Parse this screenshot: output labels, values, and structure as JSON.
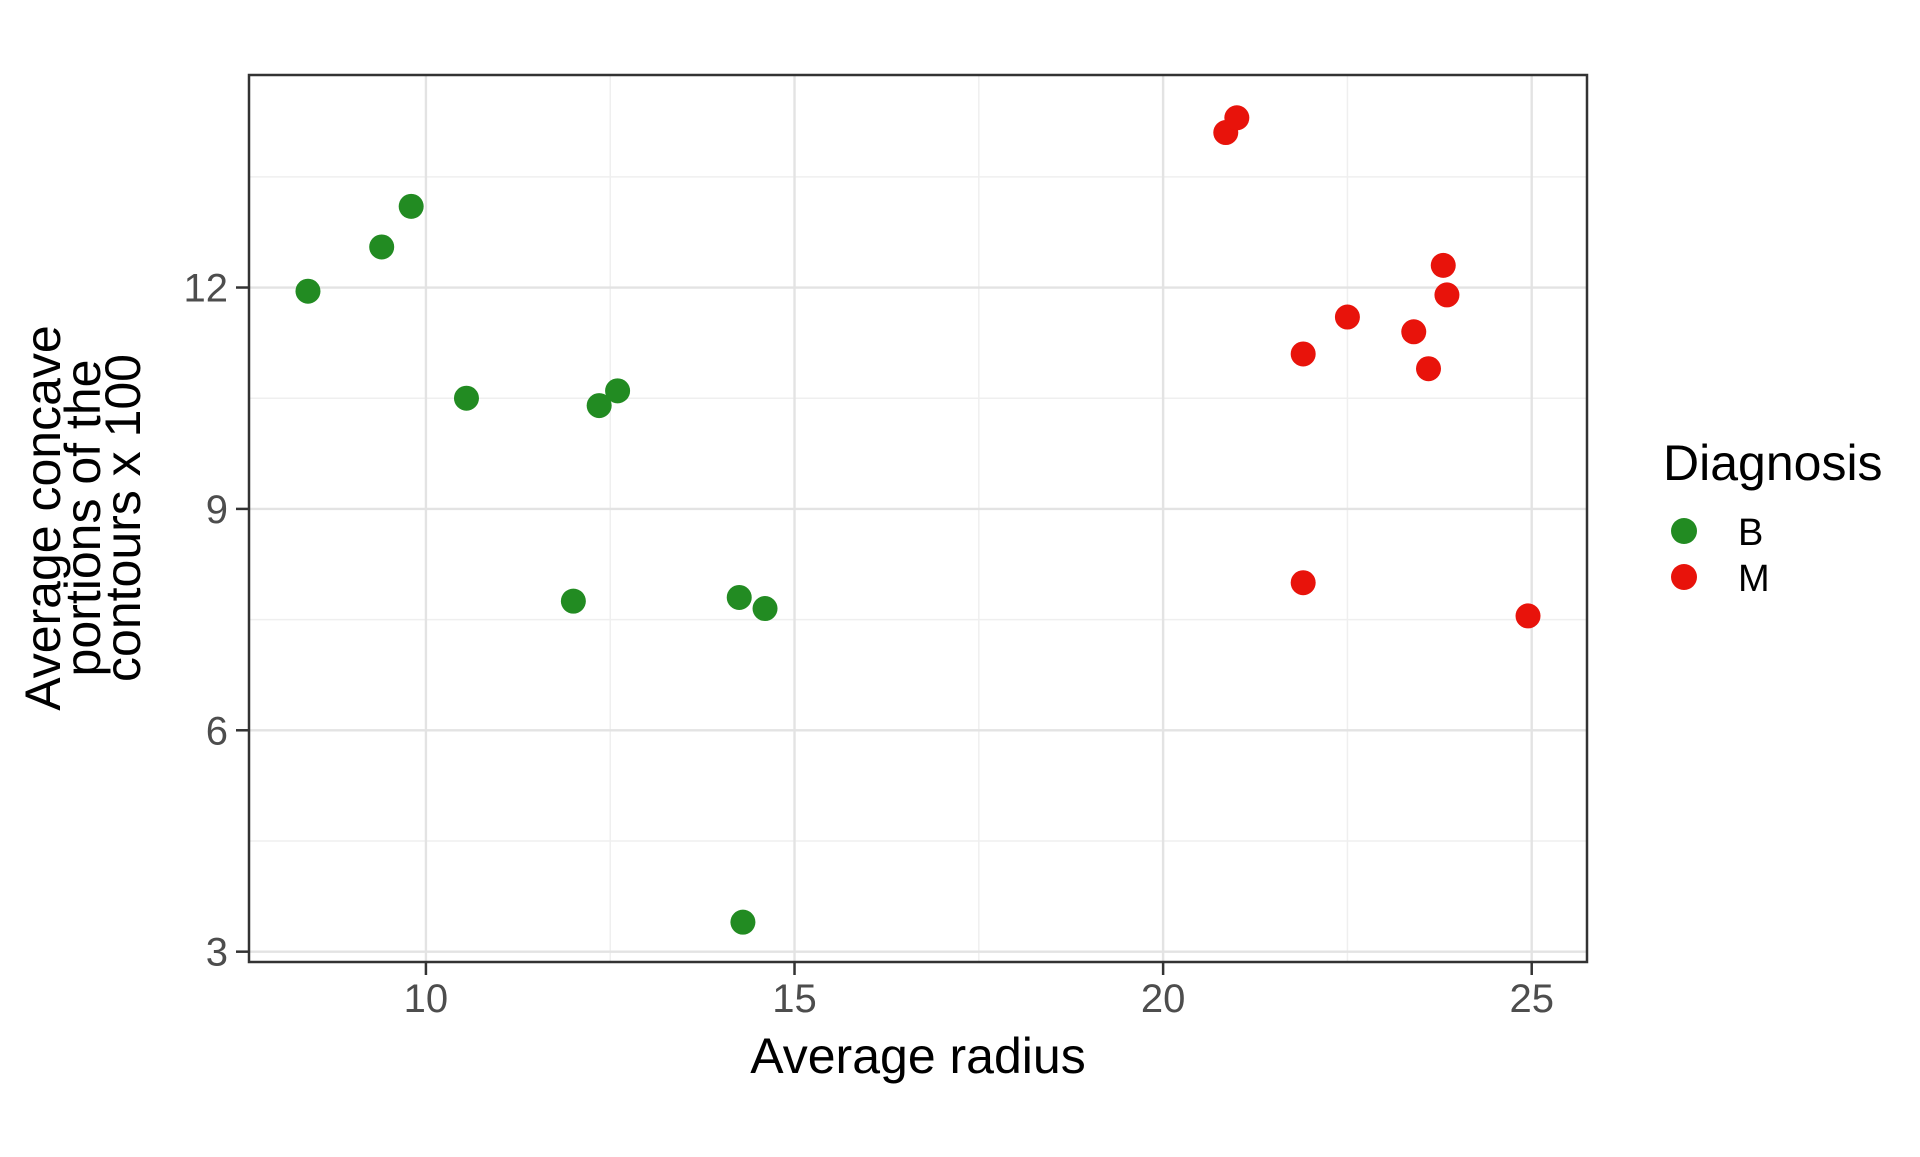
{
  "chart_data": {
    "type": "scatter",
    "xlabel": "Average radius",
    "ylabel_lines": [
      "Average concave",
      "portions of the",
      "contours x 100"
    ],
    "xlim": [
      7.6,
      25.75
    ],
    "ylim": [
      2.86,
      14.88
    ],
    "x_ticks": [
      10,
      15,
      20,
      25
    ],
    "y_ticks": [
      3,
      6,
      9,
      12
    ],
    "x_minor_gridlines": [
      12.5,
      17.5,
      22.5
    ],
    "y_minor_gridlines": [
      4.5,
      7.5,
      10.5,
      13.5
    ],
    "grid": true,
    "legend": {
      "title": "Diagnosis",
      "position": "right",
      "entries": [
        {
          "label": "B",
          "color": "#228B22"
        },
        {
          "label": "M",
          "color": "#E8130B"
        }
      ]
    },
    "series": [
      {
        "name": "B",
        "color": "#228B22",
        "points": [
          [
            8.4,
            11.95
          ],
          [
            9.4,
            12.55
          ],
          [
            9.8,
            13.1
          ],
          [
            10.55,
            10.5
          ],
          [
            12.35,
            10.4
          ],
          [
            12.6,
            10.6
          ],
          [
            12.0,
            7.75
          ],
          [
            14.25,
            7.8
          ],
          [
            14.6,
            7.65
          ],
          [
            14.3,
            3.4
          ]
        ]
      },
      {
        "name": "M",
        "color": "#E8130B",
        "points": [
          [
            20.85,
            14.1
          ],
          [
            21.0,
            14.3
          ],
          [
            21.9,
            11.1
          ],
          [
            22.5,
            11.6
          ],
          [
            23.4,
            11.4
          ],
          [
            23.6,
            10.9
          ],
          [
            23.8,
            12.3
          ],
          [
            23.85,
            11.9
          ],
          [
            21.9,
            8.0
          ],
          [
            24.95,
            7.55
          ]
        ]
      }
    ],
    "style": {
      "panel_border_color": "#333333",
      "major_grid_color": "#E3E3E3",
      "minor_grid_color": "#EFEFEF",
      "tick_mark_color": "#333333",
      "tick_text_color": "#4D4D4D",
      "point_radius": 12.5,
      "legend_key_radius": 13
    }
  }
}
